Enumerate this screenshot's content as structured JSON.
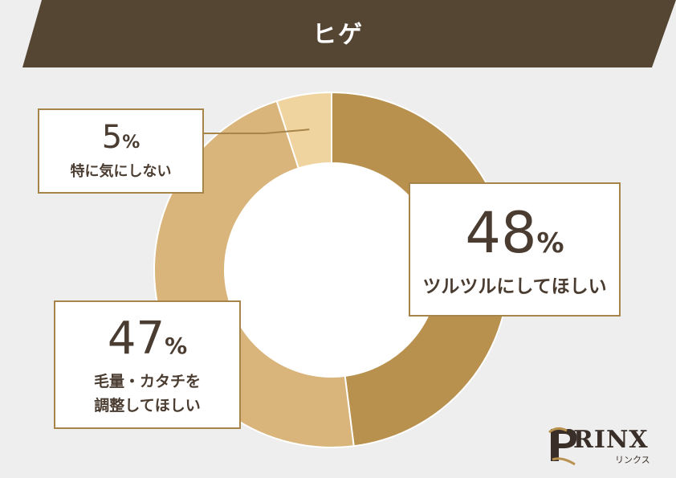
{
  "title": "ヒゲ",
  "chart_data": {
    "type": "pie",
    "donut": true,
    "slices": [
      {
        "label": "ツルツルにしてほしい",
        "value": 48,
        "display": "48",
        "unit": "%",
        "color": "#b8914f"
      },
      {
        "label": "毛量・カタチを\n調整してほしい",
        "value": 47,
        "display": "47",
        "unit": "%",
        "color": "#d9b57b"
      },
      {
        "label": "特に気にしない",
        "value": 5,
        "display": "5",
        "unit": "%",
        "color": "#efd4a0"
      }
    ]
  },
  "colors": {
    "banner": "#554533",
    "callout_border": "#a7854a",
    "background": "#efeeee"
  },
  "logo": {
    "text": "RINX",
    "sub": "リンクス"
  }
}
